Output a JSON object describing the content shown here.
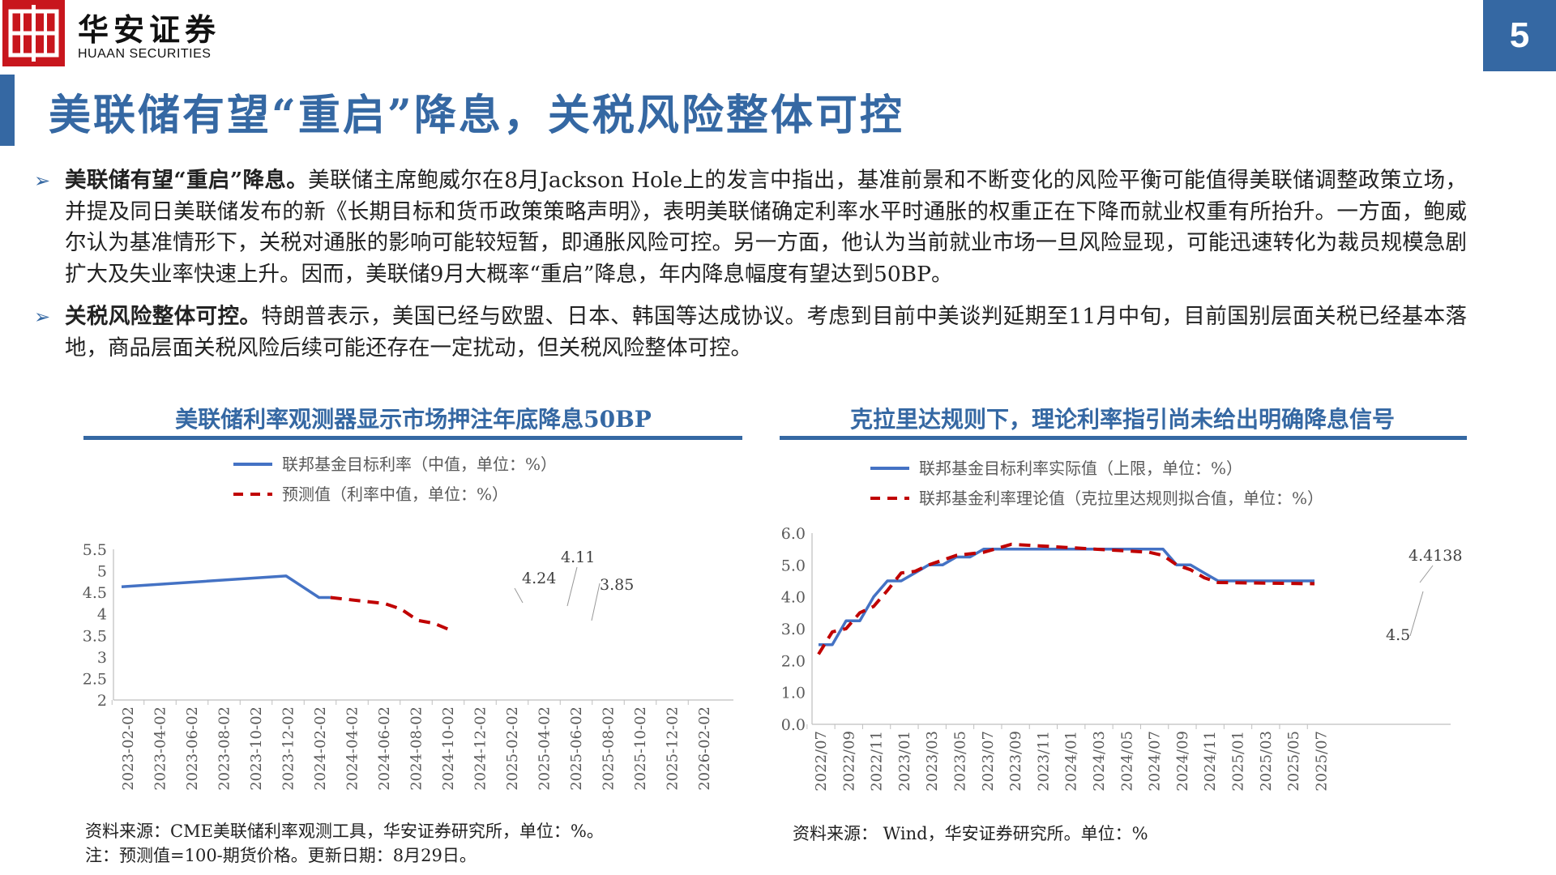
{
  "header": {
    "logo_cn": "华安证券",
    "logo_en": "HUAAN SECURITIES",
    "page_number": "5",
    "brand_color": "#c8161d",
    "accent_color": "#3568a3"
  },
  "title": "美联储有望“重启”降息，关税风险整体可控",
  "bullets": [
    {
      "lead": "美联储有望“重启”降息。",
      "body": "美联储主席鲍威尔在8月Jackson Hole上的发言中指出，基准前景和不断变化的风险平衡可能值得美联储调整政策立场，并提及同日美联储发布的新《长期目标和货币政策策略声明》，表明美联储确定利率水平时通胀的权重正在下降而就业权重有所抬升。一方面，鲍威尔认为基准情形下，关税对通胀的影响可能较短暂，即通胀风险可控。另一方面，他认为当前就业市场一旦风险显现，可能迅速转化为裁员规模急剧扩大及失业率快速上升。因而，美联储9月大概率“重启”降息，年内降息幅度有望达到50BP。"
    },
    {
      "lead": "关税风险整体可控。",
      "body": "特朗普表示，美国已经与欧盟、日本、韩国等达成协议。考虑到目前中美谈判延期至11月中旬，目前国别层面关税已经基本落地，商品层面关税风险后续可能还存在一定扰动，但关税风险整体可控。"
    }
  ],
  "charts": {
    "left": {
      "title": "美联储利率观测器显示市场押注年底降息50BP",
      "source": "资料来源：CME美联储利率观测工具，华安证券研究所，单位：%。",
      "note": "注：预测值=100-期货价格。更新日期：8月29日。",
      "annotations": [
        "4.24",
        "4.11",
        "3.85"
      ]
    },
    "right": {
      "title": "克拉里达规则下，理论利率指引尚未给出明确降息信号",
      "source": "资料来源： Wind，华安证券研究所。单位：%",
      "annotations": [
        "4.4138",
        "4.5"
      ]
    }
  },
  "chart_data": [
    {
      "type": "line",
      "title": "美联储利率观测器显示市场押注年底降息50BP",
      "x": [
        "2023-02-02",
        "2023-04-02",
        "2023-06-02",
        "2023-08-02",
        "2023-10-02",
        "2023-12-02",
        "2024-02-02",
        "2024-04-02",
        "2024-06-02",
        "2024-08-02",
        "2024-10-02",
        "2024-12-02",
        "2025-02-02",
        "2025-04-02",
        "2025-06-02",
        "2025-08-02",
        "2025-10-02",
        "2025-12-02",
        "2026-02-02"
      ],
      "ylim": [
        2,
        5.5
      ],
      "yticks": [
        2,
        2.5,
        3,
        3.5,
        4,
        4.5,
        5,
        5.5
      ],
      "legend_position": "top",
      "series": [
        {
          "name": "联邦基金目标利率（中值，单位：%）",
          "color": "#4472c4",
          "style": "solid",
          "points": [
            [
              0,
              4.63
            ],
            [
              10,
              4.88
            ],
            [
              11,
              4.63
            ],
            [
              12,
              4.38
            ],
            [
              12.7,
              4.38
            ]
          ]
        },
        {
          "name": "预测值（利率中值，单位：%）",
          "color": "#c00000",
          "style": "dashed",
          "points": [
            [
              12.7,
              4.38
            ],
            [
              16,
              4.24
            ],
            [
              17,
              4.11
            ],
            [
              18,
              3.85
            ],
            [
              19,
              3.78
            ],
            [
              20,
              3.62
            ]
          ]
        }
      ]
    },
    {
      "type": "line",
      "title": "克拉里达规则下，理论利率指引尚未给出明确降息信号",
      "x": [
        "2022/07",
        "2022/09",
        "2022/11",
        "2023/01",
        "2023/03",
        "2023/05",
        "2023/07",
        "2023/09",
        "2023/11",
        "2024/01",
        "2024/03",
        "2024/05",
        "2024/07",
        "2024/09",
        "2024/11",
        "2025/01",
        "2025/03",
        "2025/05",
        "2025/07"
      ],
      "ylim": [
        0,
        6
      ],
      "yticks": [
        "0.0",
        "1.0",
        "2.0",
        "3.0",
        "4.0",
        "5.0",
        "6.0"
      ],
      "legend_position": "top",
      "series": [
        {
          "name": "联邦基金目标利率实际值（上限，单位：%）",
          "color": "#4472c4",
          "style": "solid",
          "points": [
            [
              0,
              2.5
            ],
            [
              1,
              2.5
            ],
            [
              2,
              3.25
            ],
            [
              3,
              3.25
            ],
            [
              4,
              4.0
            ],
            [
              5,
              4.5
            ],
            [
              6,
              4.5
            ],
            [
              8,
              5.0
            ],
            [
              9,
              5.0
            ],
            [
              10,
              5.25
            ],
            [
              11,
              5.25
            ],
            [
              12,
              5.5
            ],
            [
              24,
              5.5
            ],
            [
              25,
              5.5
            ],
            [
              26,
              5.0
            ],
            [
              27,
              5.0
            ],
            [
              28,
              4.75
            ],
            [
              29,
              4.5
            ],
            [
              36,
              4.5
            ]
          ]
        },
        {
          "name": "联邦基金利率理论值（克拉里达规则拟合值，单位：%）",
          "color": "#c00000",
          "style": "dashed",
          "points": [
            [
              0,
              2.2
            ],
            [
              1,
              2.9
            ],
            [
              2,
              3.0
            ],
            [
              3,
              3.5
            ],
            [
              4,
              3.7
            ],
            [
              5,
              4.2
            ],
            [
              6,
              4.75
            ],
            [
              7,
              4.8
            ],
            [
              8,
              5.0
            ],
            [
              10,
              5.3
            ],
            [
              12,
              5.4
            ],
            [
              14,
              5.65
            ],
            [
              16,
              5.6
            ],
            [
              18,
              5.55
            ],
            [
              20,
              5.5
            ],
            [
              22,
              5.45
            ],
            [
              24,
              5.4
            ],
            [
              25,
              5.3
            ],
            [
              26,
              5.0
            ],
            [
              27,
              4.85
            ],
            [
              28,
              4.6
            ],
            [
              29,
              4.45
            ],
            [
              36,
              4.41
            ]
          ]
        }
      ]
    }
  ]
}
